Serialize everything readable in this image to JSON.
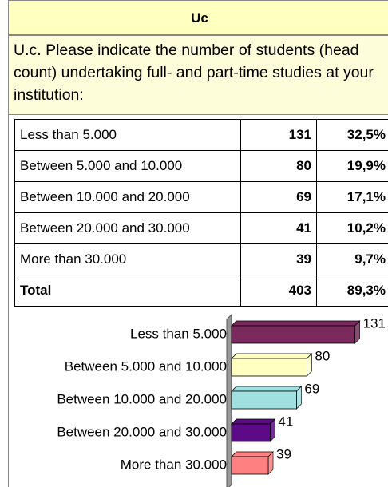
{
  "header": {
    "title": "Uc"
  },
  "question": {
    "text": "U.c. Please indicate the number of students (head count) undertaking full- and part-time studies at your institution:"
  },
  "table": {
    "rows": [
      [
        "Less than 5.000",
        "131",
        "32,5%"
      ],
      [
        "Between 5.000 and 10.000",
        "80",
        "19,9%"
      ],
      [
        "Between 10.000 and 20.000",
        "69",
        "17,1%"
      ],
      [
        "Between 20.000 and 30.000",
        "41",
        "10,2%"
      ],
      [
        "More than 30.000",
        "39",
        "9,7%"
      ],
      [
        "Total",
        "403",
        "89,3%"
      ]
    ]
  },
  "chart_data": {
    "type": "bar",
    "orientation": "horizontal",
    "categories": [
      "Less than 5.000",
      "Between 5.000 and 10.000",
      "Between 10.000 and 20.000",
      "Between 20.000 and 30.000",
      "More than 30.000"
    ],
    "values": [
      131,
      80,
      69,
      41,
      39
    ],
    "colors": [
      "#7a2a5c",
      "#ffffc0",
      "#a0e0e0",
      "#5c0a88",
      "#ff8080"
    ],
    "xlim": [
      0,
      150
    ]
  }
}
